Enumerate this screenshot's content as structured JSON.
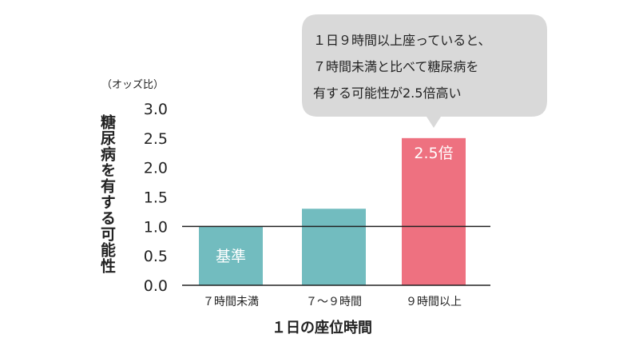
{
  "chart_data": {
    "type": "bar",
    "categories": [
      "７時間未満",
      "７～９時間",
      "９時間以上"
    ],
    "values": [
      1.0,
      1.3,
      2.5
    ],
    "bar_labels": [
      "基準",
      "",
      "2.5倍"
    ],
    "bar_colors": [
      "#72bcbf",
      "#72bcbf",
      "#ee7180"
    ],
    "xlabel": "１日の座位時間",
    "ylabel": "糖尿病を有する可能性",
    "y_unit": "（オッズ比）",
    "ylim": [
      0.0,
      3.0
    ],
    "yticks": [
      "0.0",
      "0.5",
      "1.0",
      "1.5",
      "2.0",
      "2.5",
      "3.0"
    ],
    "reference_line": 1.0,
    "grid": false,
    "callout": {
      "lines": [
        "１日９時間以上座っていると、",
        "７時間未満と比べて糖尿病を",
        "有する可能性が2.5倍高い"
      ],
      "color": "#d9d9d9"
    }
  }
}
